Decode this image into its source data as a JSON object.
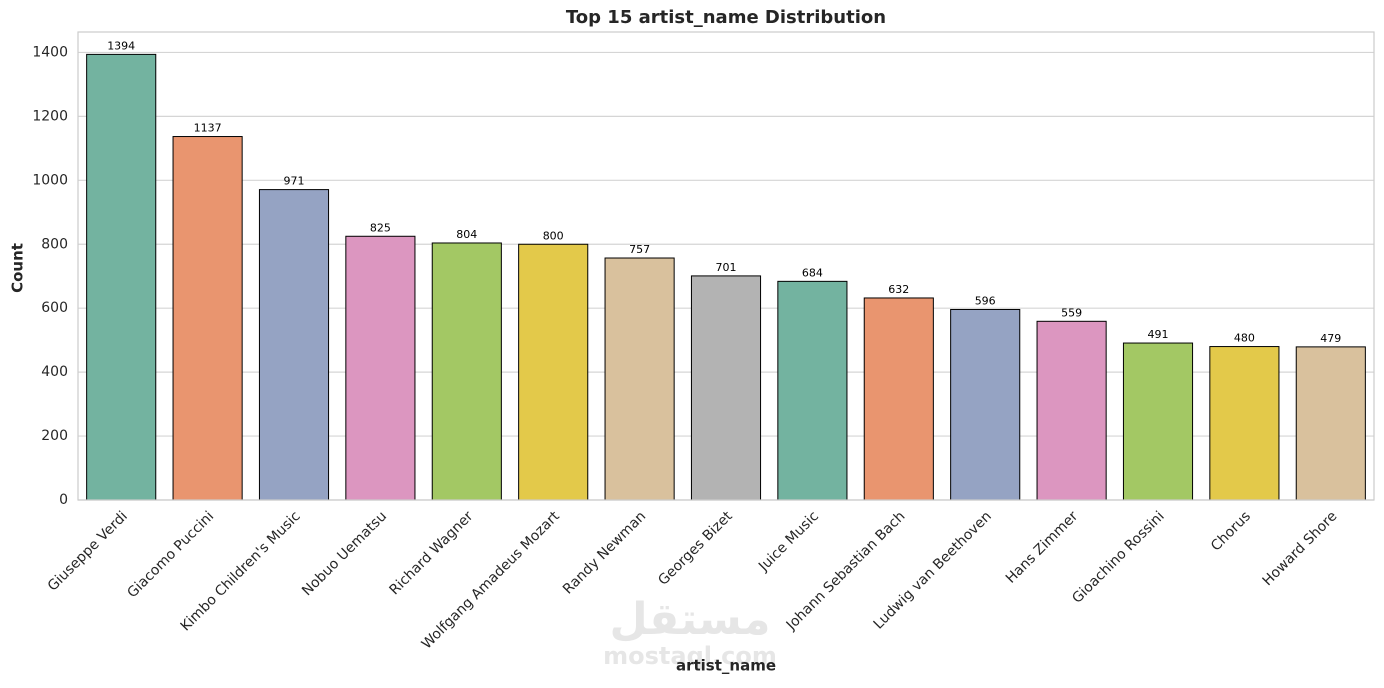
{
  "chart_data": {
    "type": "bar",
    "title": "Top 15 artist_name Distribution",
    "x_label": "artist_name",
    "y_label": "Count",
    "categories": [
      "Giuseppe Verdi",
      "Giacomo Puccini",
      "Kimbo Children's Music",
      "Nobuo Uematsu",
      "Richard Wagner",
      "Wolfgang Amadeus Mozart",
      "Randy Newman",
      "Georges Bizet",
      "Juice Music",
      "Johann Sebastian Bach",
      "Ludwig van Beethoven",
      "Hans Zimmer",
      "Gioachino Rossini",
      "Chorus",
      "Howard Shore"
    ],
    "values": [
      1394,
      1137,
      971,
      825,
      804,
      800,
      757,
      701,
      684,
      632,
      596,
      559,
      491,
      480,
      479
    ],
    "colors": [
      "#73b3a0",
      "#e9956f",
      "#95a3c3",
      "#dc96c0",
      "#a3c864",
      "#e3c94a",
      "#d9c19d",
      "#b3b3b3",
      "#73b3a0",
      "#e9956f",
      "#95a3c3",
      "#dc96c0",
      "#a3c864",
      "#e3c94a",
      "#d9c19d"
    ],
    "ylim": [
      0,
      1464
    ],
    "yticks": [
      0,
      200,
      400,
      600,
      800,
      1000,
      1200,
      1400
    ],
    "grid": true
  },
  "watermark": {
    "arabic": "مستقل",
    "latin": "mostaql.com"
  }
}
